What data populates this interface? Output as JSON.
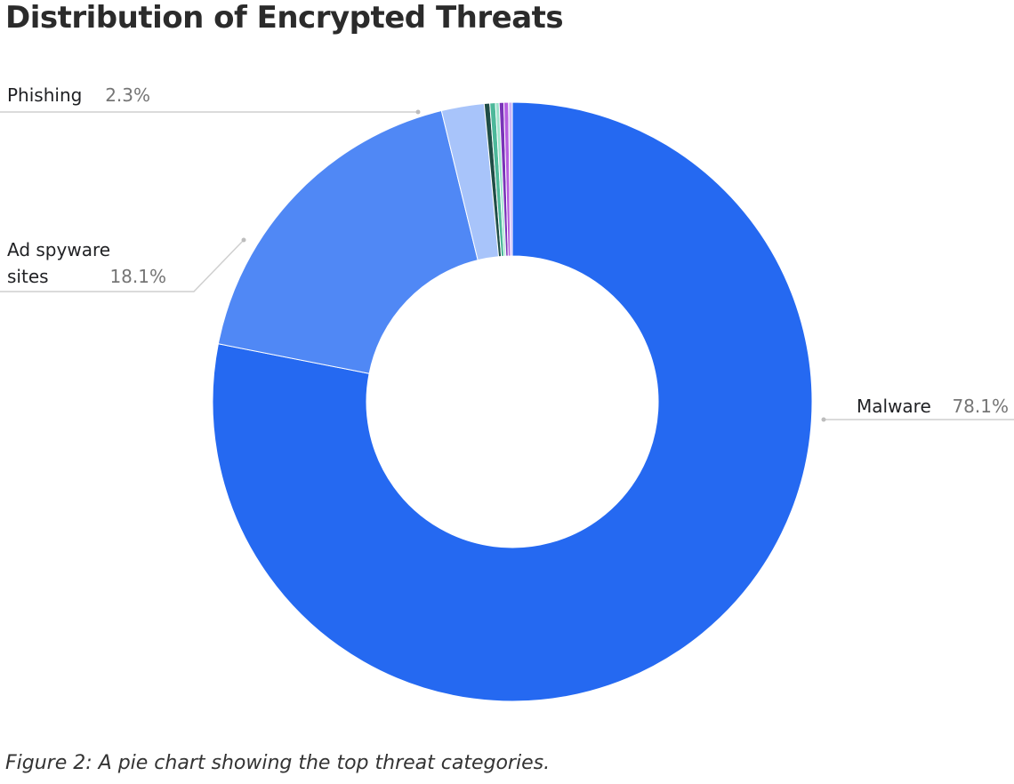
{
  "title": "Distribution of Encrypted Threats",
  "caption": "Figure 2: A pie chart showing the top threat categories.",
  "chart_data": {
    "type": "pie",
    "donut": true,
    "title": "Distribution of Encrypted Threats",
    "slices": [
      {
        "name": "Malware",
        "value": 78.1,
        "label": "78.1%",
        "color": "#2569f1"
      },
      {
        "name": "Ad spyware sites",
        "value": 18.1,
        "label": "18.1%",
        "color": "#5088f5"
      },
      {
        "name": "Phishing",
        "value": 2.3,
        "label": "2.3%",
        "color": "#a8c4fa"
      },
      {
        "name": "",
        "value": 0.3,
        "color": "#1f4d46"
      },
      {
        "name": "",
        "value": 0.3,
        "color": "#4cb89a"
      },
      {
        "name": "",
        "value": 0.2,
        "color": "#9ce3cc"
      },
      {
        "name": "",
        "value": 0.25,
        "color": "#7a33b8"
      },
      {
        "name": "",
        "value": 0.25,
        "color": "#b45ce0"
      },
      {
        "name": "",
        "value": 0.2,
        "color": "#cbb5f7"
      }
    ]
  }
}
